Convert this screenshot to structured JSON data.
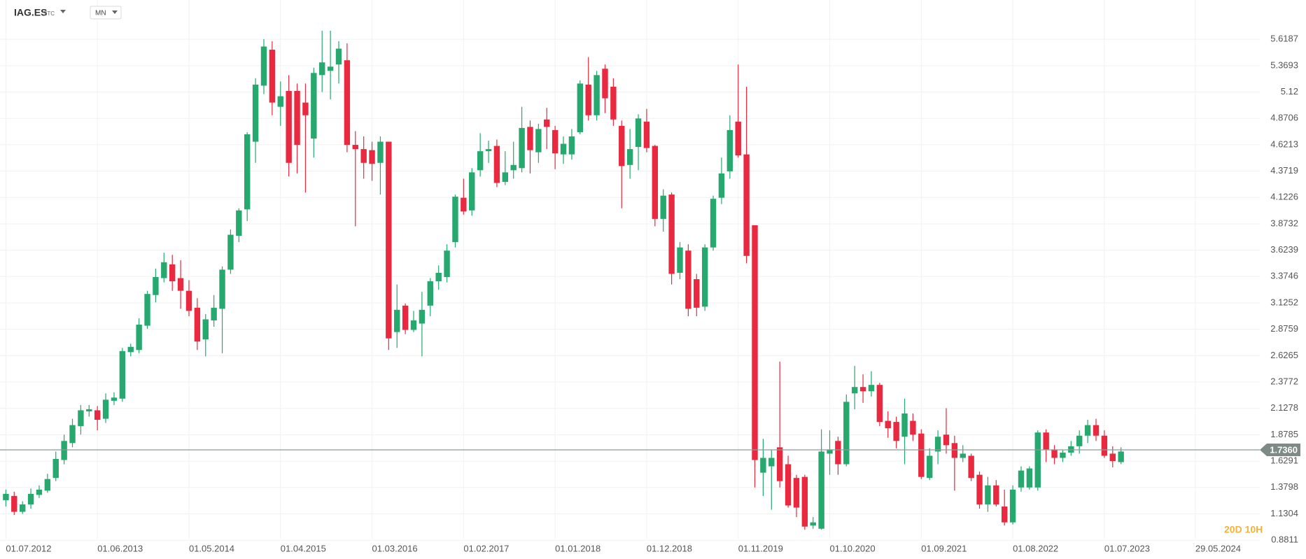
{
  "chart_data": {
    "type": "candlestick",
    "symbol": "IAG.ES",
    "symbol_tag": "STC",
    "interval": "MN",
    "countdown": "20D 10H",
    "up_color": "#26a86e",
    "down_color": "#e8293f",
    "x_tick_labels": [
      "01.07.2012",
      "01.06.2013",
      "01.05.2014",
      "01.04.2015",
      "01.03.2016",
      "01.02.2017",
      "01.01.2018",
      "01.12.2018",
      "01.11.2019",
      "01.10.2020",
      "01.09.2021",
      "01.08.2022",
      "01.07.2023",
      "29.05.2024"
    ],
    "ylim": [
      0.75,
      5.99
    ],
    "yticks": [
      5.6187,
      5.3693,
      5.12,
      4.8706,
      4.6213,
      4.3719,
      4.1226,
      3.8732,
      3.6239,
      3.3746,
      3.1252,
      2.8759,
      2.6265,
      2.3772,
      2.1278,
      1.8785,
      1.6291,
      1.3798,
      1.1304,
      0.8811
    ],
    "last_price": {
      "value": 1.736,
      "label": "1.7360"
    },
    "grid": true,
    "series": {
      "open": [
        1.26,
        1.3,
        1.15,
        1.22,
        1.31,
        1.35,
        1.47,
        1.64,
        1.8,
        1.96,
        2.1,
        2.11,
        2.03,
        2.2,
        2.22,
        2.66,
        2.68,
        2.91,
        3.2,
        3.36,
        3.49,
        3.36,
        3.24,
        3.08,
        2.78,
        2.96,
        3.07,
        3.44,
        3.76,
        4.01,
        4.65,
        5.18,
        5.52,
        4.98,
        5.13,
        5.13,
        5.02,
        4.68,
        5.28,
        5.32,
        5.38,
        5.42,
        4.62,
        4.58,
        4.57,
        4.45,
        4.65,
        2.85,
        3.1,
        2.87,
        2.93,
        3.1,
        3.33,
        3.37,
        3.7,
        4.12,
        4.0,
        4.38,
        4.56,
        4.61,
        4.27,
        4.38,
        4.4,
        4.79,
        4.55,
        4.86,
        4.76,
        4.53,
        4.53,
        4.74,
        5.19,
        4.9,
        5.34,
        5.17,
        4.8,
        4.43,
        4.6,
        4.84,
        4.61,
        3.92,
        4.15,
        3.41,
        3.62,
        3.35,
        3.09,
        3.65,
        4.12,
        4.37,
        4.84,
        4.53,
        3.86,
        1.52,
        1.58,
        1.76,
        1.6,
        1.47,
        1.48,
        1.02,
        0.99,
        1.7,
        1.82,
        1.6,
        2.27,
        2.33,
        2.29,
        2.35,
        2.01,
        2.0,
        1.86,
        2.01,
        1.89,
        1.47,
        1.72,
        1.88,
        1.8,
        1.66,
        1.68,
        1.5,
        1.22,
        1.4,
        1.2,
        1.05,
        1.38,
        1.38,
        1.38,
        1.9,
        1.74,
        1.66,
        1.71,
        1.77,
        1.87,
        1.97,
        1.87,
        1.7,
        1.62
      ],
      "high": [
        1.36,
        1.34,
        1.25,
        1.37,
        1.4,
        1.51,
        1.72,
        1.88,
        2.03,
        2.16,
        2.16,
        2.15,
        2.27,
        2.28,
        2.7,
        2.74,
        2.98,
        3.24,
        3.45,
        3.6,
        3.58,
        3.53,
        3.34,
        3.17,
        3.02,
        3.2,
        3.47,
        3.82,
        4.02,
        4.74,
        5.25,
        5.62,
        5.6,
        5.22,
        5.28,
        5.2,
        5.2,
        5.35,
        5.7,
        5.7,
        5.6,
        5.58,
        4.75,
        4.7,
        4.65,
        4.7,
        4.65,
        3.3,
        3.12,
        3.05,
        3.23,
        3.36,
        3.48,
        3.68,
        4.15,
        4.3,
        4.4,
        4.73,
        4.66,
        4.67,
        4.56,
        4.65,
        4.98,
        4.85,
        4.82,
        4.97,
        4.8,
        4.7,
        4.77,
        5.23,
        5.45,
        5.32,
        5.38,
        5.25,
        4.85,
        4.77,
        4.91,
        4.96,
        4.62,
        4.2,
        4.17,
        3.7,
        3.68,
        3.4,
        3.68,
        4.14,
        4.5,
        4.9,
        5.38,
        5.17,
        3.86,
        1.84,
        1.74,
        2.57,
        1.68,
        1.5,
        1.5,
        1.1,
        1.93,
        1.92,
        1.86,
        2.26,
        2.53,
        2.45,
        2.48,
        2.37,
        2.1,
        2.05,
        2.22,
        2.08,
        1.93,
        1.75,
        1.92,
        2.13,
        1.87,
        1.78,
        1.7,
        1.53,
        1.48,
        1.45,
        1.36,
        1.4,
        1.58,
        1.58,
        1.92,
        1.93,
        1.78,
        1.74,
        1.82,
        1.92,
        2.02,
        2.03,
        1.92,
        1.77,
        1.76
      ],
      "low": [
        1.2,
        1.12,
        1.13,
        1.18,
        1.28,
        1.33,
        1.44,
        1.6,
        1.76,
        1.88,
        2.05,
        1.92,
        1.99,
        2.16,
        2.19,
        2.62,
        2.65,
        2.88,
        3.13,
        3.32,
        3.24,
        3.07,
        3.0,
        2.68,
        2.62,
        2.9,
        2.65,
        3.4,
        3.7,
        3.9,
        4.45,
        5.1,
        4.9,
        4.8,
        4.32,
        4.35,
        4.17,
        4.5,
        5.12,
        5.05,
        5.2,
        4.55,
        3.85,
        4.3,
        4.28,
        4.15,
        2.68,
        2.7,
        2.83,
        2.85,
        2.62,
        3.0,
        3.25,
        3.32,
        3.65,
        3.96,
        3.95,
        4.32,
        4.45,
        4.22,
        4.24,
        4.3,
        4.36,
        4.35,
        4.45,
        4.58,
        4.39,
        4.44,
        4.48,
        4.72,
        4.85,
        4.85,
        4.92,
        4.8,
        4.02,
        4.3,
        4.38,
        4.55,
        3.85,
        3.8,
        3.3,
        3.35,
        3.0,
        3.0,
        3.05,
        3.62,
        4.06,
        4.3,
        4.5,
        3.5,
        1.38,
        1.3,
        1.17,
        1.38,
        1.19,
        1.1,
        0.98,
        0.99,
        0.98,
        1.5,
        1.5,
        1.58,
        2.12,
        2.18,
        2.24,
        1.96,
        1.85,
        1.75,
        1.6,
        1.82,
        1.46,
        1.45,
        1.6,
        1.7,
        1.35,
        1.62,
        1.44,
        1.18,
        1.15,
        1.2,
        1.02,
        1.03,
        1.34,
        1.36,
        1.35,
        1.62,
        1.6,
        1.62,
        1.68,
        1.7,
        1.8,
        1.82,
        1.66,
        1.57,
        1.6
      ],
      "close": [
        1.32,
        1.15,
        1.22,
        1.32,
        1.36,
        1.46,
        1.65,
        1.82,
        1.97,
        2.11,
        2.12,
        2.02,
        2.21,
        2.23,
        2.67,
        2.71,
        2.92,
        3.21,
        3.37,
        3.51,
        3.33,
        3.24,
        3.05,
        2.76,
        2.97,
        3.08,
        3.44,
        3.77,
        4.0,
        4.72,
        5.19,
        5.55,
        5.02,
        5.08,
        4.45,
        4.62,
        4.9,
        5.3,
        5.4,
        5.36,
        5.53,
        4.62,
        4.58,
        4.45,
        4.44,
        4.65,
        2.79,
        3.06,
        2.87,
        2.96,
        3.06,
        3.33,
        3.41,
        3.62,
        4.13,
        3.99,
        4.36,
        4.56,
        4.58,
        4.26,
        4.36,
        4.43,
        4.78,
        4.57,
        4.77,
        4.79,
        4.54,
        4.63,
        4.7,
        5.2,
        4.9,
        5.28,
        5.06,
        4.86,
        4.42,
        4.58,
        4.87,
        4.59,
        3.92,
        4.14,
        3.4,
        3.65,
        3.07,
        3.08,
        3.65,
        4.11,
        4.35,
        4.76,
        4.52,
        3.57,
        1.64,
        1.66,
        1.66,
        1.44,
        1.21,
        1.19,
        1.01,
        1.05,
        1.72,
        1.74,
        1.6,
        2.19,
        2.33,
        2.29,
        2.35,
        2.0,
        1.94,
        1.82,
        2.08,
        1.88,
        1.48,
        1.68,
        1.86,
        1.78,
        1.66,
        1.7,
        1.47,
        1.22,
        1.4,
        1.22,
        1.05,
        1.36,
        1.54,
        1.56,
        1.9,
        1.74,
        1.66,
        1.71,
        1.77,
        1.87,
        1.97,
        1.87,
        1.68,
        1.63,
        1.72
      ]
    }
  }
}
